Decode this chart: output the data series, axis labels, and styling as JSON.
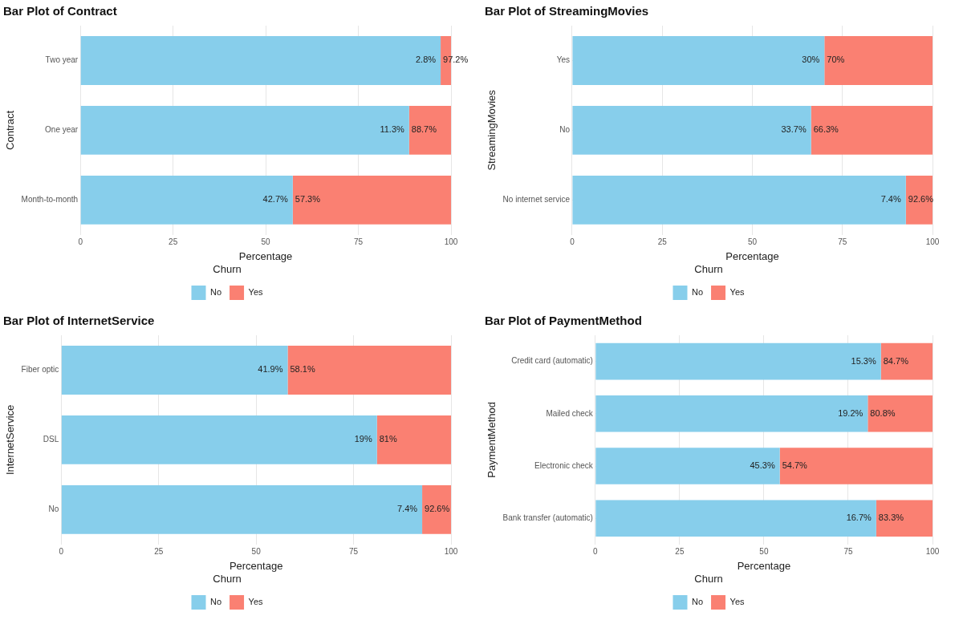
{
  "chart_data": [
    {
      "type": "bar",
      "orientation": "horizontal",
      "stacked": true,
      "title": "Bar Plot of Contract",
      "xlabel": "Percentage",
      "ylabel": "Contract",
      "legend_title": "Churn",
      "legend": "bottom",
      "grid": true,
      "xlim": [
        0,
        100
      ],
      "xticks": [
        0,
        25,
        50,
        75,
        100
      ],
      "categories": [
        "Two year",
        "One year",
        "Month-to-month"
      ],
      "series": [
        {
          "name": "No",
          "color": "#87ceeb",
          "values": [
            97.2,
            88.7,
            57.3
          ]
        },
        {
          "name": "Yes",
          "color": "#fa8072",
          "values": [
            2.8,
            11.3,
            42.7
          ]
        }
      ],
      "annotations": [
        {
          "text": "2.8%",
          "x": 97.2,
          "y": "Two year"
        },
        {
          "text": "97.2%",
          "x": 97.2,
          "y": "Two year"
        },
        {
          "text": "11.3%",
          "x": 88.7,
          "y": "One year"
        },
        {
          "text": "88.7%",
          "x": 88.7,
          "y": "One year"
        },
        {
          "text": "42.7%",
          "x": 57.3,
          "y": "Month-to-month"
        },
        {
          "text": "57.3%",
          "x": 57.3,
          "y": "Month-to-month"
        }
      ]
    },
    {
      "type": "bar",
      "orientation": "horizontal",
      "stacked": true,
      "title": "Bar Plot of StreamingMovies",
      "xlabel": "Percentage",
      "ylabel": "StreamingMovies",
      "legend_title": "Churn",
      "legend": "bottom",
      "grid": true,
      "xlim": [
        0,
        100
      ],
      "xticks": [
        0,
        25,
        50,
        75,
        100
      ],
      "categories": [
        "Yes",
        "No",
        "No internet service"
      ],
      "series": [
        {
          "name": "No",
          "color": "#87ceeb",
          "values": [
            70,
            66.3,
            92.6
          ]
        },
        {
          "name": "Yes",
          "color": "#fa8072",
          "values": [
            30,
            33.7,
            7.4
          ]
        }
      ],
      "annotations": [
        {
          "text": "30%",
          "x": 70,
          "y": "Yes"
        },
        {
          "text": "70%",
          "x": 70,
          "y": "Yes"
        },
        {
          "text": "33.7%",
          "x": 66.3,
          "y": "No"
        },
        {
          "text": "66.3%",
          "x": 66.3,
          "y": "No"
        },
        {
          "text": "7.4%",
          "x": 92.6,
          "y": "No internet service"
        },
        {
          "text": "92.6%",
          "x": 92.6,
          "y": "No internet service"
        }
      ]
    },
    {
      "type": "bar",
      "orientation": "horizontal",
      "stacked": true,
      "title": "Bar Plot of InternetService",
      "xlabel": "Percentage",
      "ylabel": "InternetService",
      "legend_title": "Churn",
      "legend": "bottom",
      "grid": true,
      "xlim": [
        0,
        100
      ],
      "xticks": [
        0,
        25,
        50,
        75,
        100
      ],
      "categories": [
        "Fiber optic",
        "DSL",
        "No"
      ],
      "series": [
        {
          "name": "No",
          "color": "#87ceeb",
          "values": [
            58.1,
            81,
            92.6
          ]
        },
        {
          "name": "Yes",
          "color": "#fa8072",
          "values": [
            41.9,
            19,
            7.4
          ]
        }
      ],
      "annotations": [
        {
          "text": "41.9%",
          "x": 58.1,
          "y": "Fiber optic"
        },
        {
          "text": "58.1%",
          "x": 58.1,
          "y": "Fiber optic"
        },
        {
          "text": "19%",
          "x": 81,
          "y": "DSL"
        },
        {
          "text": "81%",
          "x": 81,
          "y": "DSL"
        },
        {
          "text": "7.4%",
          "x": 92.6,
          "y": "No"
        },
        {
          "text": "92.6%",
          "x": 92.6,
          "y": "No"
        }
      ]
    },
    {
      "type": "bar",
      "orientation": "horizontal",
      "stacked": true,
      "title": "Bar Plot of PaymentMethod",
      "xlabel": "Percentage",
      "ylabel": "PaymentMethod",
      "legend_title": "Churn",
      "legend": "bottom",
      "grid": true,
      "xlim": [
        0,
        100
      ],
      "xticks": [
        0,
        25,
        50,
        75,
        100
      ],
      "categories": [
        "Credit card (automatic)",
        "Mailed check",
        "Electronic check",
        "Bank transfer (automatic)"
      ],
      "series": [
        {
          "name": "No",
          "color": "#87ceeb",
          "values": [
            84.7,
            80.8,
            54.7,
            83.3
          ]
        },
        {
          "name": "Yes",
          "color": "#fa8072",
          "values": [
            15.3,
            19.2,
            45.3,
            16.7
          ]
        }
      ],
      "annotations": [
        {
          "text": "15.3%",
          "x": 84.7,
          "y": "Credit card (automatic)"
        },
        {
          "text": "84.7%",
          "x": 84.7,
          "y": "Credit card (automatic)"
        },
        {
          "text": "19.2%",
          "x": 80.8,
          "y": "Mailed check"
        },
        {
          "text": "80.8%",
          "x": 80.8,
          "y": "Mailed check"
        },
        {
          "text": "45.3%",
          "x": 54.7,
          "y": "Electronic check"
        },
        {
          "text": "54.7%",
          "x": 54.7,
          "y": "Electronic check"
        },
        {
          "text": "16.7%",
          "x": 83.3,
          "y": "Bank transfer (automatic)"
        },
        {
          "text": "83.3%",
          "x": 83.3,
          "y": "Bank transfer (automatic)"
        }
      ]
    }
  ]
}
